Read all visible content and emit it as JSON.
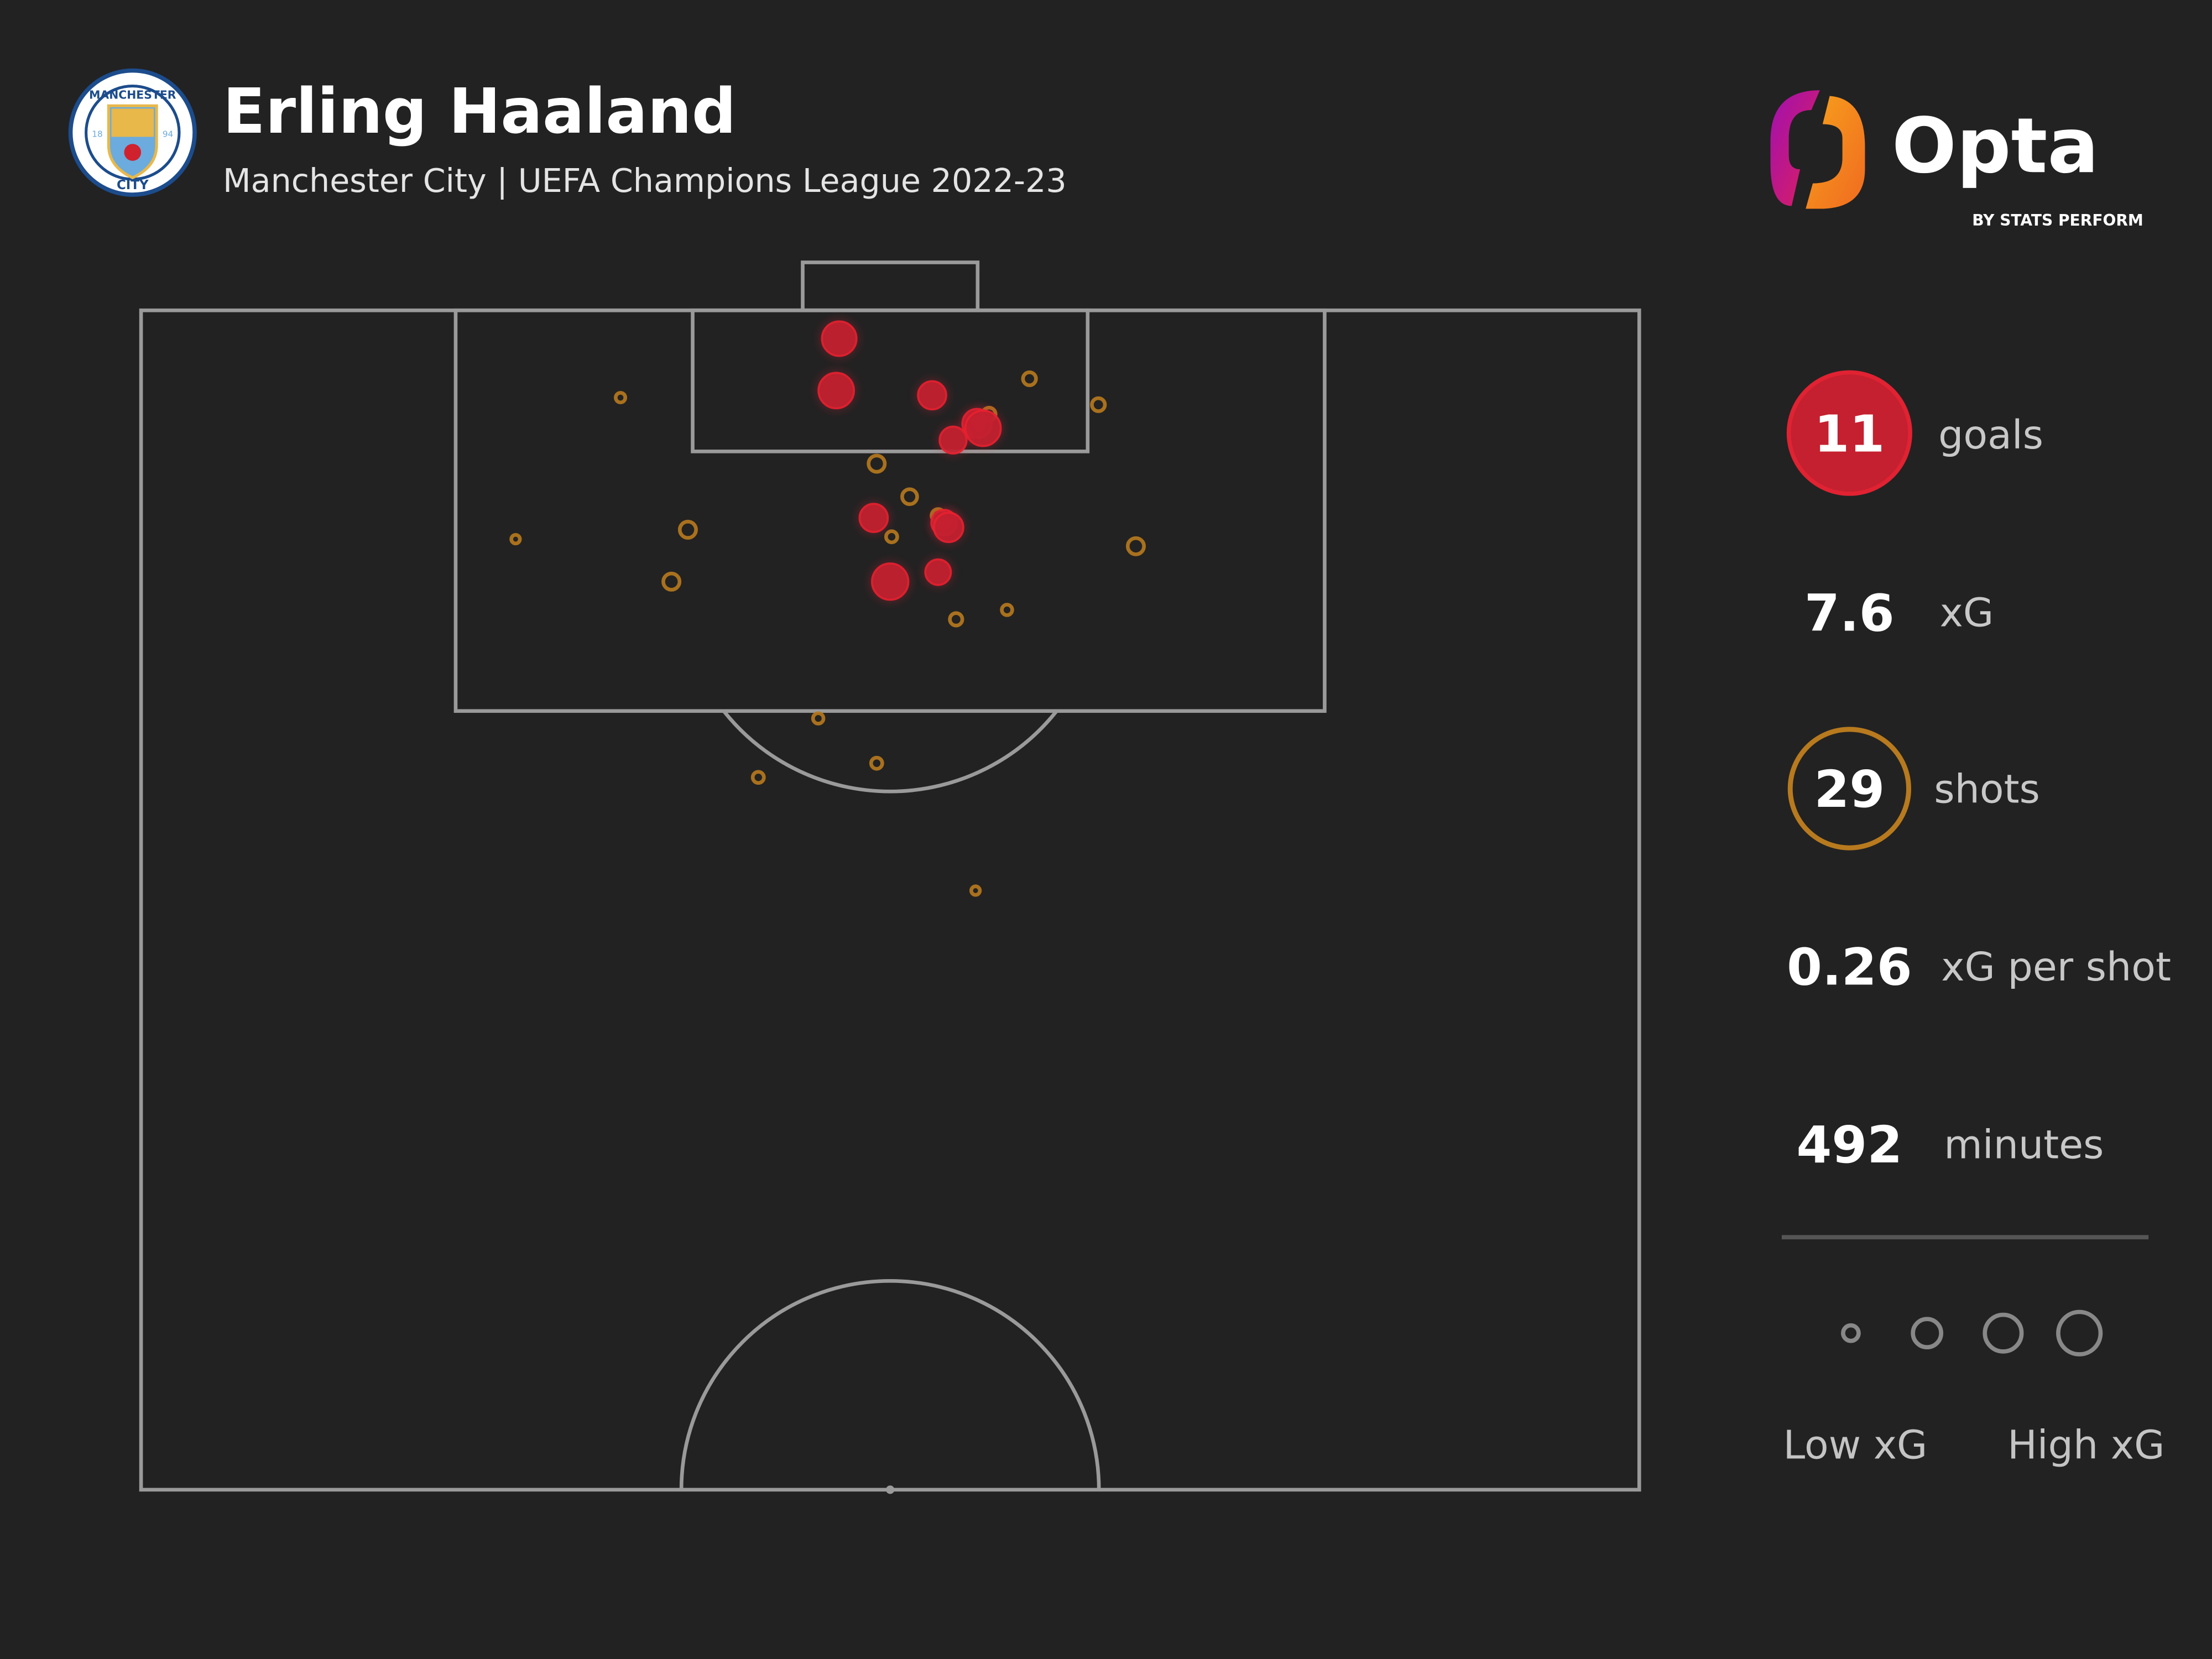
{
  "header": {
    "title": "Erling Haaland",
    "subtitle": "Manchester City | UEFA Champions League 2022-23",
    "crest": {
      "text_top": "MANCHESTER",
      "text_bottom": "CITY",
      "year_left": "18",
      "year_right": "94",
      "colors": {
        "ring": "#1c4c8c",
        "sky": "#6cabdd",
        "gold": "#e8b84a",
        "rose": "#d0212f"
      }
    },
    "brand": {
      "name": "Opta",
      "tagline": "BY STATS PERFORM",
      "gradient": [
        "#a010b0",
        "#e0205a",
        "#f7a21c"
      ]
    }
  },
  "stats": {
    "goals": {
      "value": "11",
      "label": "goals"
    },
    "xg": {
      "value": "7.6",
      "label": "xG"
    },
    "shots": {
      "value": "29",
      "label": "shots"
    },
    "xg_per_shot": {
      "value": "0.26",
      "label": "xG per shot"
    },
    "minutes": {
      "value": "492",
      "label": "minutes"
    }
  },
  "legend": {
    "low_label": "Low xG",
    "high_label": "High xG",
    "sizes_xg": [
      0.02,
      0.15,
      0.4,
      0.7
    ]
  },
  "colors": {
    "background": "#222222",
    "pitch_lines": "#9a9a9a",
    "goal": "#d7202f",
    "non_goal": "#b87a1e"
  },
  "chart_data": {
    "type": "scatter",
    "description_units": "pitch coordinates 0-100 (x toward goal, y across pitch), marker size = xG",
    "view": "attacking half",
    "series": [
      {
        "name": "goals",
        "points": [
          {
            "x": 98.8,
            "y": 46.6,
            "xg": 0.7
          },
          {
            "x": 96.6,
            "y": 46.4,
            "xg": 0.75
          },
          {
            "x": 96.4,
            "y": 52.8,
            "xg": 0.4
          },
          {
            "x": 95.2,
            "y": 55.8,
            "xg": 0.45
          },
          {
            "x": 95.0,
            "y": 56.2,
            "xg": 0.75
          },
          {
            "x": 94.5,
            "y": 54.2,
            "xg": 0.35
          },
          {
            "x": 91.2,
            "y": 48.9,
            "xg": 0.4
          },
          {
            "x": 91.0,
            "y": 53.6,
            "xg": 0.3
          },
          {
            "x": 90.8,
            "y": 53.9,
            "xg": 0.45
          },
          {
            "x": 88.5,
            "y": 50.0,
            "xg": 0.8
          },
          {
            "x": 88.9,
            "y": 53.2,
            "xg": 0.3
          }
        ]
      },
      {
        "name": "shots",
        "points": [
          {
            "x": 96.3,
            "y": 32.0,
            "xg": 0.03
          },
          {
            "x": 97.1,
            "y": 59.3,
            "xg": 0.08
          },
          {
            "x": 96.0,
            "y": 63.9,
            "xg": 0.08
          },
          {
            "x": 95.6,
            "y": 56.6,
            "xg": 0.08
          },
          {
            "x": 93.5,
            "y": 49.1,
            "xg": 0.15
          },
          {
            "x": 92.1,
            "y": 51.3,
            "xg": 0.12
          },
          {
            "x": 91.3,
            "y": 53.2,
            "xg": 0.08
          },
          {
            "x": 90.4,
            "y": 50.1,
            "xg": 0.05
          },
          {
            "x": 90.3,
            "y": 25.0,
            "xg": 0.02
          },
          {
            "x": 90.7,
            "y": 36.5,
            "xg": 0.15
          },
          {
            "x": 88.5,
            "y": 35.4,
            "xg": 0.15
          },
          {
            "x": 90.0,
            "y": 66.4,
            "xg": 0.15
          },
          {
            "x": 86.9,
            "y": 54.4,
            "xg": 0.07
          },
          {
            "x": 87.3,
            "y": 57.8,
            "xg": 0.04
          },
          {
            "x": 82.7,
            "y": 45.2,
            "xg": 0.04
          },
          {
            "x": 80.2,
            "y": 41.2,
            "xg": 0.05
          },
          {
            "x": 80.8,
            "y": 49.1,
            "xg": 0.05
          },
          {
            "x": 75.4,
            "y": 55.7,
            "xg": 0.02
          }
        ]
      }
    ]
  }
}
